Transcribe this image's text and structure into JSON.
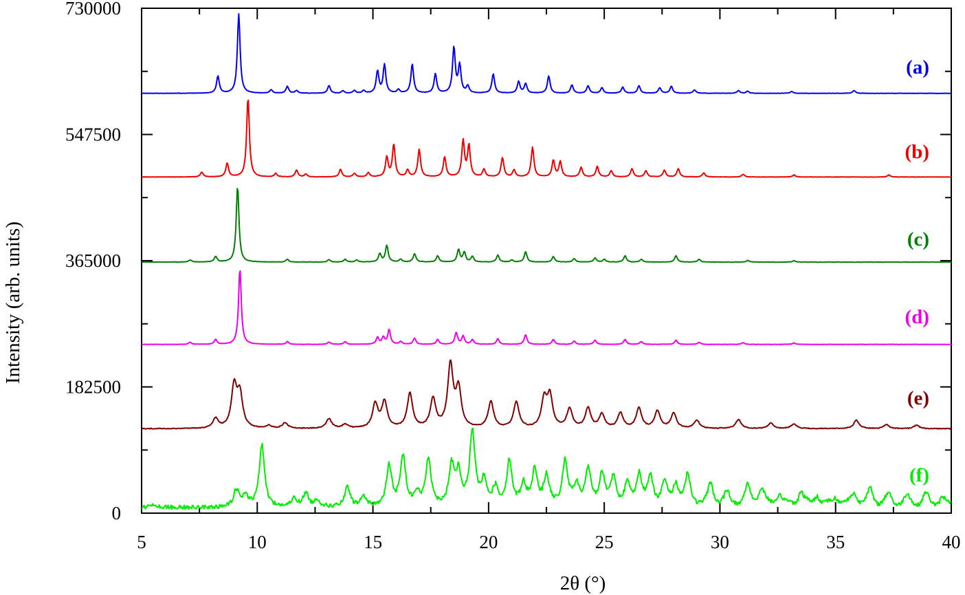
{
  "chart_data": {
    "type": "line",
    "xlabel": "2θ (°)",
    "ylabel": "Intensity (arb. units)",
    "xlim": [
      5,
      40
    ],
    "ylim": [
      0,
      730000
    ],
    "x_ticks": [
      5,
      10,
      15,
      20,
      25,
      30,
      35,
      40
    ],
    "y_ticks": [
      0,
      182500,
      365000,
      547500,
      730000
    ],
    "grid": false,
    "series": [
      {
        "name": "(a)",
        "color": "#0000ee",
        "baseline": 607000,
        "peaks": [
          [
            8.3,
            25000
          ],
          [
            9.2,
            115000
          ],
          [
            10.6,
            5000
          ],
          [
            11.3,
            10000
          ],
          [
            11.7,
            4000
          ],
          [
            13.1,
            11000
          ],
          [
            13.7,
            3500
          ],
          [
            14.2,
            4000
          ],
          [
            14.6,
            4000
          ],
          [
            15.2,
            32000
          ],
          [
            15.5,
            41000
          ],
          [
            16.1,
            5000
          ],
          [
            16.7,
            42000
          ],
          [
            17.7,
            28000
          ],
          [
            18.5,
            66000
          ],
          [
            18.75,
            40000
          ],
          [
            19.1,
            10000
          ],
          [
            20.2,
            28000
          ],
          [
            21.3,
            17000
          ],
          [
            21.6,
            14000
          ],
          [
            22.6,
            25000
          ],
          [
            23.6,
            12000
          ],
          [
            24.3,
            11000
          ],
          [
            24.9,
            8000
          ],
          [
            25.8,
            9000
          ],
          [
            26.5,
            11000
          ],
          [
            27.4,
            8000
          ],
          [
            27.9,
            10000
          ],
          [
            28.9,
            5000
          ],
          [
            30.8,
            4000
          ],
          [
            31.2,
            3000
          ],
          [
            33.1,
            2500
          ],
          [
            35.8,
            4000
          ]
        ]
      },
      {
        "name": "(b)",
        "color": "#ee0000",
        "baseline": 486000,
        "peaks": [
          [
            7.6,
            7000
          ],
          [
            8.7,
            20000
          ],
          [
            9.6,
            115000
          ],
          [
            10.8,
            5000
          ],
          [
            11.7,
            10000
          ],
          [
            12.1,
            4000
          ],
          [
            13.6,
            11000
          ],
          [
            14.2,
            5000
          ],
          [
            14.8,
            6000
          ],
          [
            15.6,
            28000
          ],
          [
            15.9,
            47000
          ],
          [
            16.5,
            10000
          ],
          [
            17.0,
            40000
          ],
          [
            18.1,
            29000
          ],
          [
            18.9,
            52000
          ],
          [
            19.15,
            45000
          ],
          [
            19.8,
            11000
          ],
          [
            20.6,
            28000
          ],
          [
            21.1,
            10000
          ],
          [
            21.9,
            43000
          ],
          [
            22.8,
            24000
          ],
          [
            23.1,
            22000
          ],
          [
            24.0,
            14000
          ],
          [
            24.7,
            15000
          ],
          [
            25.3,
            9000
          ],
          [
            26.2,
            12000
          ],
          [
            26.8,
            9000
          ],
          [
            27.6,
            10000
          ],
          [
            28.2,
            12000
          ],
          [
            29.3,
            6000
          ],
          [
            31.0,
            4000
          ],
          [
            33.2,
            3000
          ],
          [
            37.3,
            3000
          ]
        ]
      },
      {
        "name": "(c)",
        "color": "#008000",
        "baseline": 363000,
        "peaks": [
          [
            7.1,
            3000
          ],
          [
            8.2,
            8000
          ],
          [
            9.15,
            110000
          ],
          [
            11.3,
            4000
          ],
          [
            13.1,
            3500
          ],
          [
            13.8,
            4000
          ],
          [
            14.3,
            3000
          ],
          [
            15.3,
            12000
          ],
          [
            15.6,
            24000
          ],
          [
            16.2,
            4000
          ],
          [
            16.8,
            12000
          ],
          [
            17.8,
            9000
          ],
          [
            18.7,
            18000
          ],
          [
            18.95,
            14000
          ],
          [
            19.3,
            8000
          ],
          [
            20.4,
            10000
          ],
          [
            21.0,
            3000
          ],
          [
            21.6,
            15000
          ],
          [
            22.8,
            8000
          ],
          [
            23.7,
            5000
          ],
          [
            24.6,
            6000
          ],
          [
            25.0,
            4000
          ],
          [
            25.9,
            9000
          ],
          [
            26.6,
            4000
          ],
          [
            28.1,
            9000
          ],
          [
            29.1,
            4000
          ],
          [
            31.2,
            2500
          ],
          [
            33.2,
            2000
          ]
        ]
      },
      {
        "name": "(d)",
        "color": "#ee00ee",
        "baseline": 244000,
        "peaks": [
          [
            7.1,
            3000
          ],
          [
            8.2,
            7000
          ],
          [
            9.25,
            110000
          ],
          [
            11.3,
            4000
          ],
          [
            13.1,
            3500
          ],
          [
            13.8,
            4000
          ],
          [
            15.2,
            10000
          ],
          [
            15.45,
            10000
          ],
          [
            15.7,
            21000
          ],
          [
            16.2,
            4000
          ],
          [
            16.8,
            9000
          ],
          [
            17.8,
            7000
          ],
          [
            18.6,
            17000
          ],
          [
            18.9,
            12000
          ],
          [
            19.3,
            7000
          ],
          [
            20.4,
            8000
          ],
          [
            21.6,
            14000
          ],
          [
            22.8,
            7000
          ],
          [
            23.7,
            5000
          ],
          [
            24.6,
            6000
          ],
          [
            25.9,
            7000
          ],
          [
            26.6,
            4000
          ],
          [
            28.1,
            6000
          ],
          [
            29.1,
            3000
          ],
          [
            31.0,
            2500
          ],
          [
            33.2,
            2000
          ]
        ]
      },
      {
        "name": "(e)",
        "color": "#800000",
        "baseline": 122000,
        "peaks": [
          [
            8.2,
            14000
          ],
          [
            9.0,
            60000
          ],
          [
            9.25,
            48000
          ],
          [
            10.5,
            4000
          ],
          [
            11.2,
            8000
          ],
          [
            13.1,
            14000
          ],
          [
            13.8,
            6000
          ],
          [
            15.1,
            35000
          ],
          [
            15.5,
            38000
          ],
          [
            16.6,
            50000
          ],
          [
            17.6,
            42000
          ],
          [
            18.35,
            90000
          ],
          [
            18.7,
            55000
          ],
          [
            20.1,
            38000
          ],
          [
            21.2,
            38000
          ],
          [
            22.4,
            40000
          ],
          [
            22.65,
            45000
          ],
          [
            23.5,
            28000
          ],
          [
            24.3,
            29000
          ],
          [
            24.9,
            20000
          ],
          [
            25.7,
            22000
          ],
          [
            26.5,
            29000
          ],
          [
            27.3,
            25000
          ],
          [
            28.0,
            22000
          ],
          [
            29.0,
            12000
          ],
          [
            30.8,
            13000
          ],
          [
            32.2,
            8000
          ],
          [
            33.2,
            7000
          ],
          [
            35.9,
            12000
          ],
          [
            37.2,
            6000
          ],
          [
            38.5,
            5000
          ]
        ]
      },
      {
        "name": "(f)",
        "color": "#00ee00",
        "baseline": 8000,
        "peaks": [
          [
            5.5,
            5000
          ],
          [
            9.1,
            25000
          ],
          [
            9.5,
            15000
          ],
          [
            10.2,
            90000
          ],
          [
            11.6,
            12000
          ],
          [
            12.1,
            20000
          ],
          [
            12.6,
            10000
          ],
          [
            13.9,
            28000
          ],
          [
            14.6,
            15000
          ],
          [
            15.7,
            58000
          ],
          [
            16.3,
            72000
          ],
          [
            16.9,
            18000
          ],
          [
            17.4,
            68000
          ],
          [
            18.4,
            55000
          ],
          [
            18.7,
            45000
          ],
          [
            19.3,
            105000
          ],
          [
            19.8,
            35000
          ],
          [
            20.3,
            25000
          ],
          [
            20.9,
            62000
          ],
          [
            21.5,
            30000
          ],
          [
            22.0,
            52000
          ],
          [
            22.5,
            40000
          ],
          [
            23.3,
            62000
          ],
          [
            23.8,
            30000
          ],
          [
            24.3,
            50000
          ],
          [
            24.9,
            45000
          ],
          [
            25.4,
            40000
          ],
          [
            26.0,
            28000
          ],
          [
            26.5,
            45000
          ],
          [
            27.0,
            40000
          ],
          [
            27.6,
            32000
          ],
          [
            28.1,
            30000
          ],
          [
            28.6,
            42000
          ],
          [
            29.6,
            30000
          ],
          [
            30.3,
            18000
          ],
          [
            31.2,
            28000
          ],
          [
            31.8,
            25000
          ],
          [
            32.6,
            15000
          ],
          [
            33.5,
            20000
          ],
          [
            34.2,
            14000
          ],
          [
            35.0,
            12000
          ],
          [
            35.8,
            18000
          ],
          [
            36.5,
            22000
          ],
          [
            37.3,
            15000
          ],
          [
            38.1,
            12000
          ],
          [
            38.9,
            14000
          ],
          [
            39.6,
            10000
          ]
        ]
      }
    ]
  }
}
